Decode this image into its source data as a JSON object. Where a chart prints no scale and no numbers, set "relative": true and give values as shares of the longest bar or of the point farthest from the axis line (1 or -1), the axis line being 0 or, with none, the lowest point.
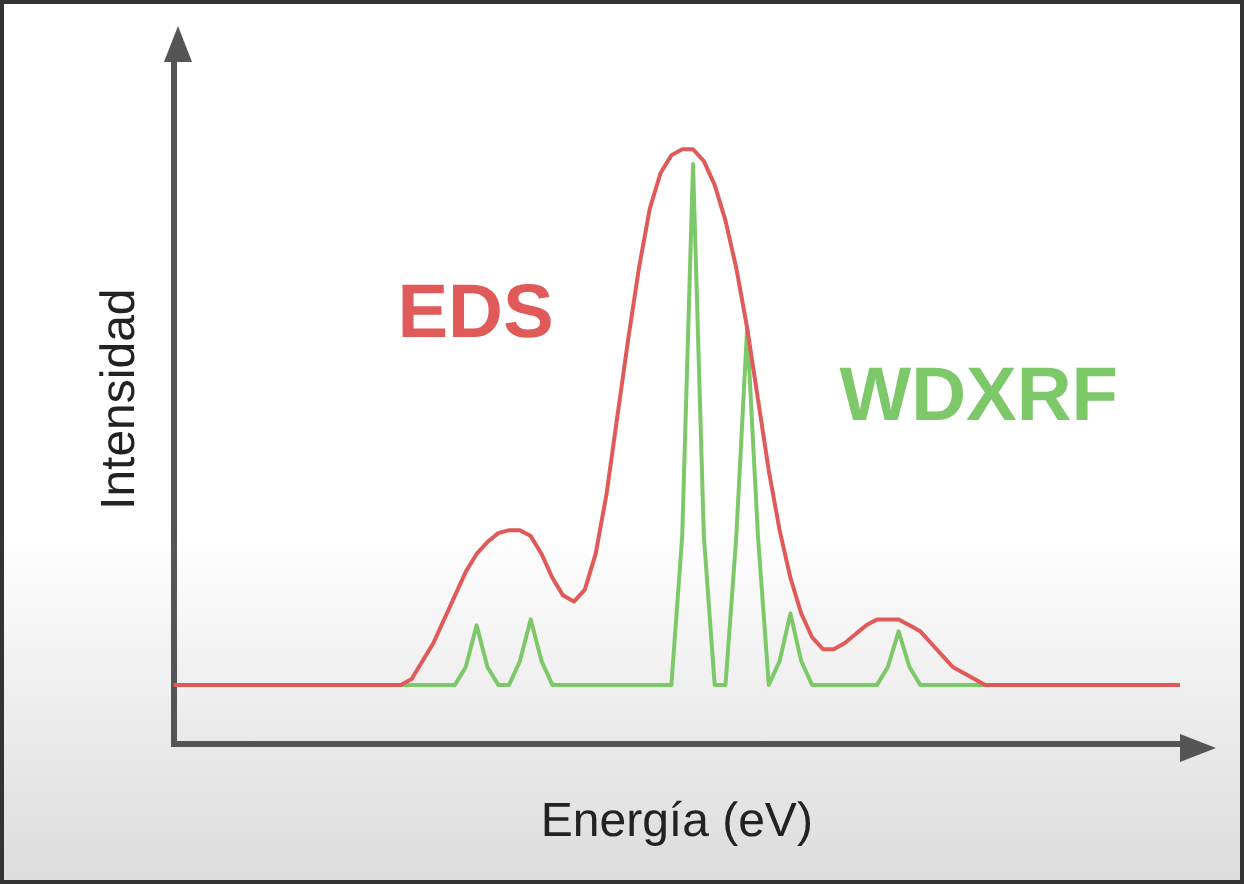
{
  "chart_data": {
    "type": "line",
    "relative": true,
    "xlabel": "Energía (eV)",
    "ylabel": "Intensidad",
    "grid": false,
    "legend": false,
    "marker": "none",
    "line_style": "solid",
    "categories": [
      null,
      null,
      null,
      null,
      null,
      null,
      null,
      null,
      null,
      null,
      null,
      null,
      null,
      null,
      null,
      null,
      null,
      null,
      null,
      null,
      null,
      null,
      null,
      null,
      null,
      null,
      null,
      null,
      null,
      null,
      null,
      null,
      null,
      null,
      null,
      null,
      null,
      null,
      null,
      null,
      null,
      null,
      null,
      null,
      null,
      null,
      null,
      null,
      null,
      null,
      null,
      null,
      null,
      null,
      null,
      null,
      null,
      null,
      null,
      null,
      null,
      null,
      null,
      null,
      null,
      null,
      null,
      null,
      null,
      null,
      null,
      null,
      null,
      null,
      null,
      null,
      null,
      null,
      null,
      null,
      null,
      null,
      null,
      null,
      null,
      null,
      null,
      null,
      null,
      null,
      null,
      null,
      null,
      null
    ],
    "series": [
      {
        "name": "EDS",
        "color": "#e05a5a",
        "values": [
          0.1,
          0.1,
          0.1,
          0.1,
          0.1,
          0.1,
          0.1,
          0.1,
          0.1,
          0.1,
          0.1,
          0.1,
          0.1,
          0.1,
          0.1,
          0.1,
          0.1,
          0.1,
          0.1,
          0.1,
          0.1,
          0.1,
          0.11,
          0.14,
          0.17,
          0.21,
          0.25,
          0.29,
          0.32,
          0.34,
          0.355,
          0.36,
          0.36,
          0.35,
          0.32,
          0.28,
          0.25,
          0.24,
          0.26,
          0.32,
          0.42,
          0.55,
          0.68,
          0.8,
          0.9,
          0.96,
          0.99,
          1,
          1,
          0.98,
          0.94,
          0.88,
          0.8,
          0.7,
          0.58,
          0.46,
          0.36,
          0.28,
          0.22,
          0.18,
          0.16,
          0.16,
          0.17,
          0.185,
          0.2,
          0.21,
          0.21,
          0.21,
          0.2,
          0.19,
          0.17,
          0.15,
          0.13,
          0.12,
          0.11,
          0.1,
          0.1,
          0.1,
          0.1,
          0.1,
          0.1,
          0.1,
          0.1,
          0.1,
          0.1,
          0.1,
          0.1,
          0.1,
          0.1,
          0.1,
          0.1,
          0.1,
          0.1,
          0.1
        ]
      },
      {
        "name": "WDXRF",
        "color": "#7dc96a",
        "values": [
          null,
          null,
          null,
          null,
          null,
          null,
          null,
          null,
          null,
          null,
          null,
          null,
          null,
          null,
          null,
          null,
          null,
          null,
          null,
          null,
          null,
          0.1,
          0.1,
          0.1,
          0.1,
          0.1,
          0.1,
          0.13,
          0.2,
          0.13,
          0.1,
          0.1,
          0.14,
          0.21,
          0.14,
          0.1,
          0.1,
          0.1,
          0.1,
          0.1,
          0.1,
          0.1,
          0.1,
          0.1,
          0.1,
          0.1,
          0.1,
          0.35,
          0.975,
          0.35,
          0.1,
          0.1,
          0.35,
          0.7,
          0.35,
          0.1,
          0.14,
          0.22,
          0.14,
          0.1,
          0.1,
          0.1,
          0.1,
          0.1,
          0.1,
          0.1,
          0.13,
          0.19,
          0.13,
          0.1,
          0.1,
          0.1,
          0.1,
          0.1,
          0.1,
          0.1,
          null,
          null,
          null,
          null,
          null,
          null,
          null,
          null,
          null,
          null,
          null,
          null,
          null,
          null,
          null,
          null,
          null,
          null
        ]
      }
    ]
  }
}
